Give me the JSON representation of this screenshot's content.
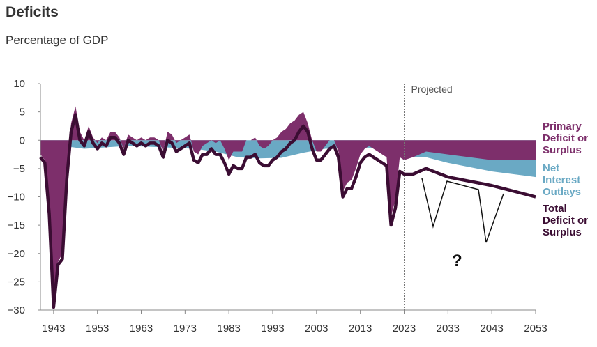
{
  "header": {
    "title": "Deficits",
    "subtitle": "Percentage of GDP"
  },
  "chart_data": {
    "type": "area",
    "title": "Deficits",
    "subtitle": "Percentage of GDP",
    "xlabel": "",
    "ylabel": "",
    "xlim": [
      1940,
      2053
    ],
    "ylim": [
      -30,
      10
    ],
    "x_ticks": [
      "1943",
      "1953",
      "1963",
      "1973",
      "1983",
      "1993",
      "2003",
      "2013",
      "2023",
      "2033",
      "2043",
      "2053"
    ],
    "y_ticks": [
      "10",
      "5",
      "0",
      "−5",
      "−10",
      "−15",
      "−20",
      "−25",
      "−30"
    ],
    "projection_start": 2023,
    "projection_label": "Projected",
    "question_label": "?",
    "colors": {
      "primary": "#7d2f6b",
      "interest": "#6aa9c4",
      "total": "#3b0d33"
    },
    "legend": [
      {
        "name": "primary",
        "lines": [
          "Primary",
          "Deficit or",
          "Surplus"
        ],
        "color": "#7d2f6b"
      },
      {
        "name": "interest",
        "lines": [
          "Net",
          "Interest",
          "Outlays"
        ],
        "color": "#6aa9c4"
      },
      {
        "name": "total",
        "lines": [
          "Total",
          "Deficit or",
          "Surplus"
        ],
        "color": "#3b0d33"
      }
    ],
    "series": [
      {
        "name": "Total Deficit or Surplus",
        "x": [
          1940,
          1941,
          1942,
          1943,
          1944,
          1945,
          1946,
          1947,
          1948,
          1949,
          1950,
          1951,
          1952,
          1953,
          1954,
          1955,
          1956,
          1957,
          1958,
          1959,
          1960,
          1961,
          1962,
          1963,
          1964,
          1965,
          1966,
          1967,
          1968,
          1969,
          1970,
          1971,
          1972,
          1973,
          1974,
          1975,
          1976,
          1977,
          1978,
          1979,
          1980,
          1981,
          1982,
          1983,
          1984,
          1985,
          1986,
          1987,
          1988,
          1989,
          1990,
          1991,
          1992,
          1993,
          1994,
          1995,
          1996,
          1997,
          1998,
          1999,
          2000,
          2001,
          2002,
          2003,
          2004,
          2005,
          2006,
          2007,
          2008,
          2009,
          2010,
          2011,
          2012,
          2013,
          2014,
          2015,
          2016,
          2017,
          2018,
          2019,
          2020,
          2021,
          2022,
          2023,
          2025,
          2028,
          2033,
          2043,
          2053
        ],
        "values": [
          -3,
          -4,
          -13,
          -29.5,
          -22,
          -21,
          -7,
          1.5,
          4.5,
          0,
          -1,
          1.5,
          -0.5,
          -1.5,
          -0.5,
          -1,
          0.5,
          0.5,
          -0.5,
          -2.5,
          0,
          -0.5,
          -1,
          -0.5,
          -1,
          -0.5,
          -0.5,
          -1,
          -3,
          0,
          -0.5,
          -2,
          -1.5,
          -1,
          -0.5,
          -3.5,
          -4,
          -2.5,
          -2.5,
          -1.5,
          -2.5,
          -2.5,
          -4,
          -6,
          -4.5,
          -5,
          -5,
          -3,
          -3,
          -2.5,
          -4,
          -4.5,
          -4.5,
          -3.5,
          -3,
          -2,
          -1.5,
          -0.5,
          0,
          1.5,
          2.5,
          1.5,
          -1.5,
          -3.5,
          -3.5,
          -2.5,
          -1.5,
          -1,
          -3,
          -10,
          -8.5,
          -8.5,
          -6.5,
          -4,
          -3,
          -2.5,
          -3,
          -3.5,
          -4,
          -4.5,
          -15,
          -12,
          -5.5,
          -6,
          -6,
          -5,
          -6.5,
          -8,
          -10
        ]
      },
      {
        "name": "Primary Deficit or Surplus",
        "x": [
          1940,
          1941,
          1942,
          1943,
          1944,
          1945,
          1946,
          1947,
          1948,
          1949,
          1950,
          1951,
          1952,
          1953,
          1954,
          1955,
          1956,
          1957,
          1958,
          1959,
          1960,
          1961,
          1962,
          1963,
          1964,
          1965,
          1966,
          1967,
          1968,
          1969,
          1970,
          1971,
          1972,
          1973,
          1974,
          1975,
          1976,
          1977,
          1978,
          1979,
          1980,
          1981,
          1982,
          1983,
          1984,
          1985,
          1986,
          1987,
          1988,
          1989,
          1990,
          1991,
          1992,
          1993,
          1994,
          1995,
          1996,
          1997,
          1998,
          1999,
          2000,
          2001,
          2002,
          2003,
          2004,
          2005,
          2006,
          2007,
          2008,
          2009,
          2010,
          2011,
          2012,
          2013,
          2014,
          2015,
          2016,
          2017,
          2018,
          2019,
          2020,
          2021,
          2022,
          2023,
          2025,
          2028,
          2033,
          2043,
          2053
        ],
        "values": [
          -2.5,
          -3.5,
          -12.5,
          -29,
          -21.5,
          -20,
          -5.5,
          3,
          6,
          1.5,
          0,
          2.5,
          0.5,
          -0.5,
          0.5,
          0,
          1.5,
          1.5,
          0.5,
          -1.5,
          1,
          0.5,
          0,
          0.5,
          0,
          0.5,
          0.5,
          0,
          -2,
          1.5,
          1,
          -0.5,
          0,
          0.5,
          1,
          -2,
          -2.5,
          -1,
          -0.5,
          0,
          -0.5,
          0,
          -1.5,
          -3.5,
          -2,
          -2,
          -2,
          0,
          0,
          0.5,
          -1,
          -1.5,
          -1,
          0,
          0.5,
          1.5,
          2,
          3,
          3.5,
          4.5,
          5,
          3,
          0,
          -2,
          -2,
          -1,
          0,
          0,
          -2,
          -9,
          -7.5,
          -7,
          -5,
          -2.5,
          -1.5,
          -1,
          -1.5,
          -2,
          -2.5,
          -3,
          -13.5,
          -10.5,
          -3,
          -3.5,
          -3,
          -2,
          -2.5,
          -3.5,
          -3.5
        ]
      },
      {
        "name": "Net Interest Outlays",
        "x": [
          1940,
          1945,
          1950,
          1960,
          1970,
          1975,
          1980,
          1985,
          1990,
          1995,
          2000,
          2005,
          2010,
          2015,
          2020,
          2022,
          2025,
          2028,
          2033,
          2043,
          2053
        ],
        "values": [
          -0.5,
          -1,
          -1.5,
          -1,
          -1.3,
          -1.5,
          -2,
          -3,
          -3.2,
          -3.1,
          -2.2,
          -1.5,
          -1.3,
          -1.3,
          -1.5,
          -2.5,
          -3,
          -3,
          -4,
          -5.5,
          -6.5
        ]
      }
    ]
  }
}
